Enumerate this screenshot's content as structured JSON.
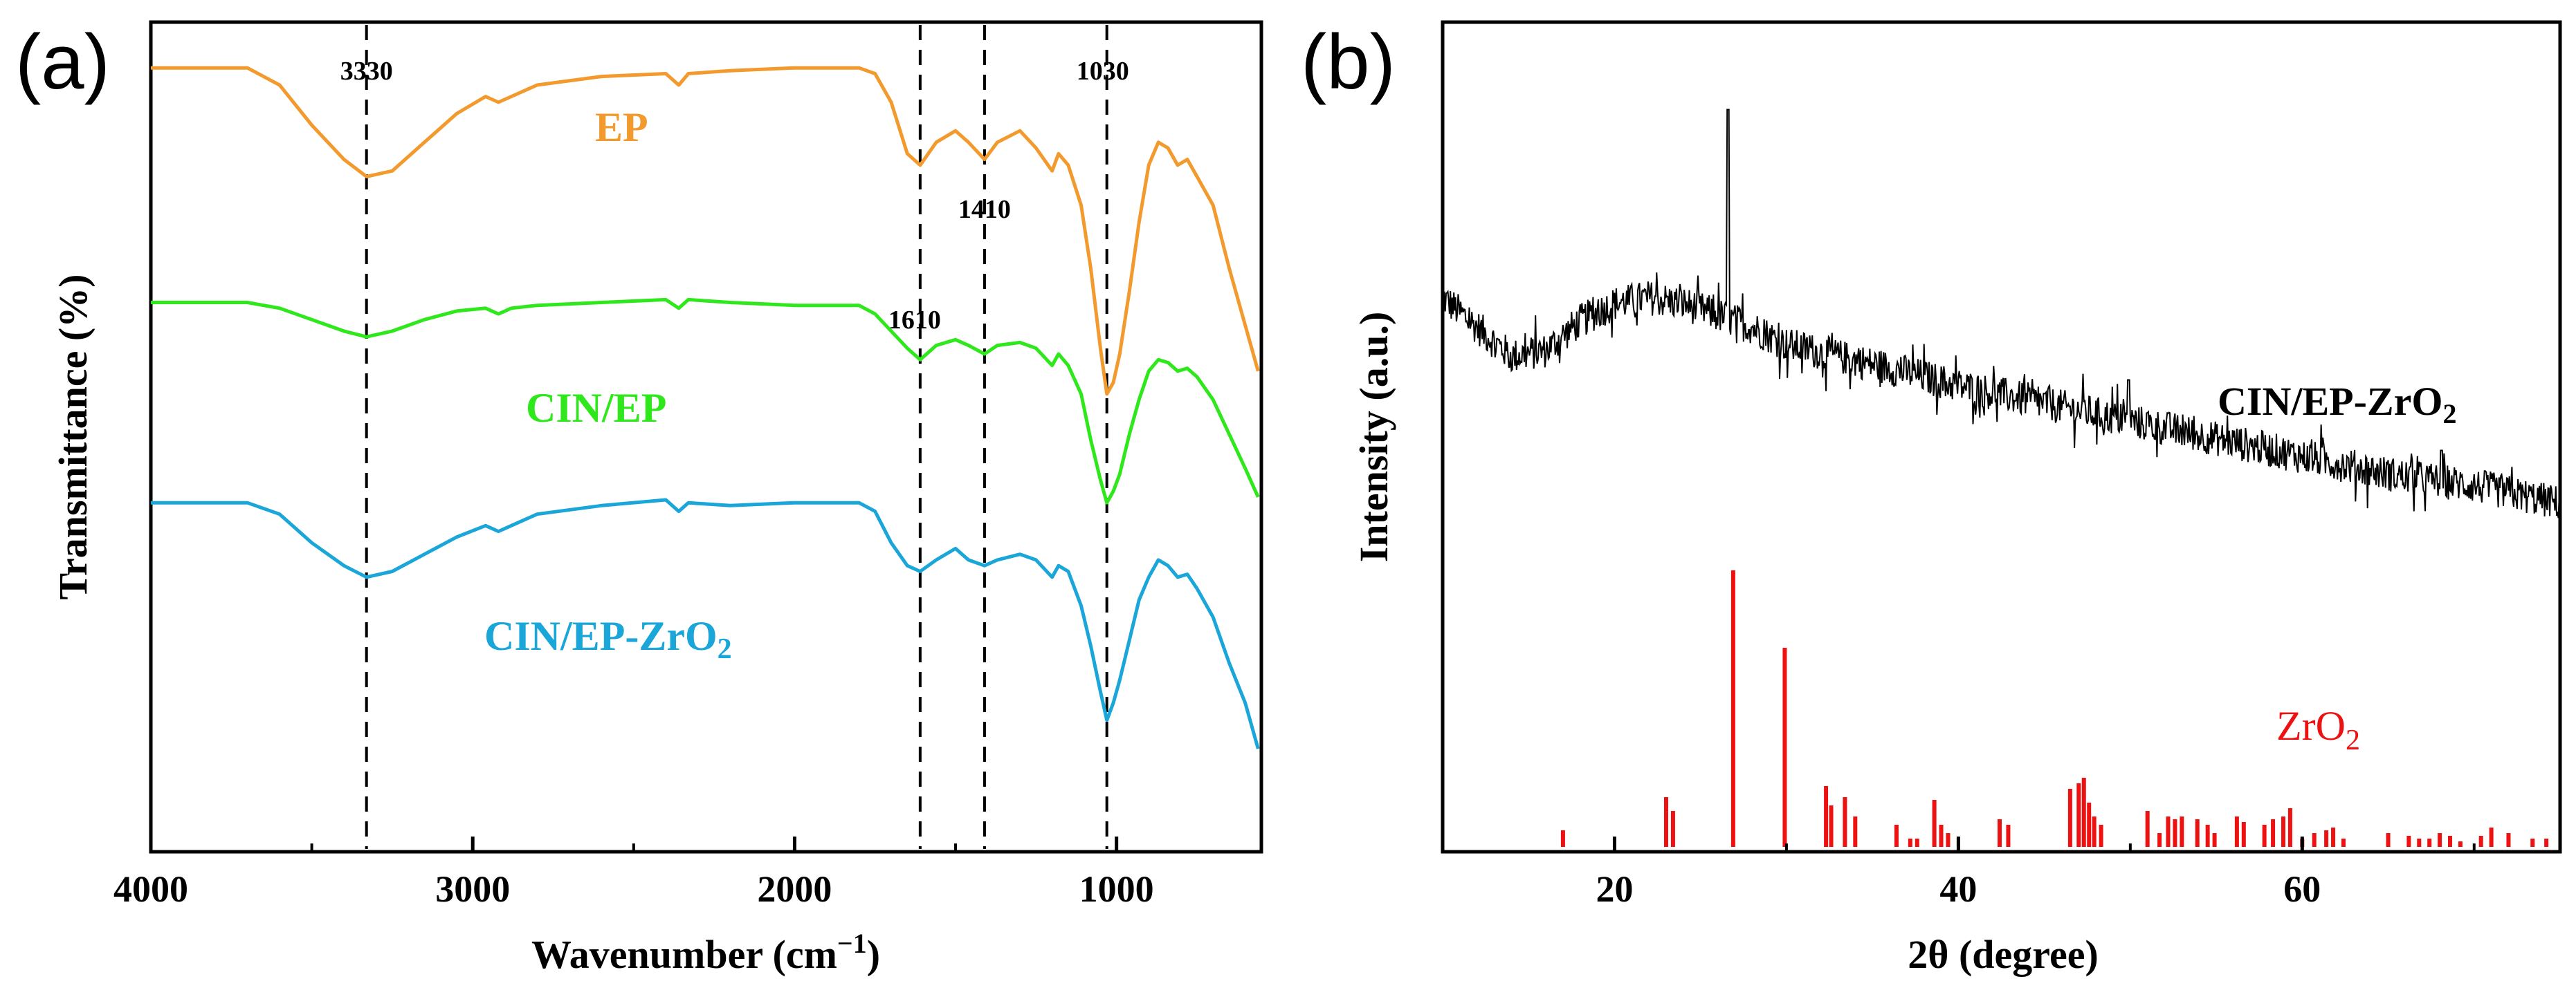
{
  "chart_data": [
    {
      "panel_label": "(a)",
      "type": "line",
      "xlabel": "Wavenumber (cm",
      "xlabel_sup": "−1",
      "xlabel_close": ")",
      "ylabel": "Transmittance (%)",
      "xlim": [
        4000,
        550
      ],
      "xticks": [
        4000,
        3000,
        2000,
        1000
      ],
      "xtick_labels": [
        "4000",
        "3000",
        "2000",
        "1000"
      ],
      "y_ticks_shown": false,
      "reference_lines": [
        {
          "x": 3330,
          "label": "3330"
        },
        {
          "x": 1610,
          "label": "1610"
        },
        {
          "x": 1410,
          "label": "1410"
        },
        {
          "x": 1030,
          "label": "1030"
        }
      ],
      "series": [
        {
          "name": "EP",
          "label": "EP",
          "color": "#f39a2e",
          "x": [
            4000,
            3700,
            3600,
            3500,
            3400,
            3330,
            3250,
            3150,
            3050,
            2960,
            2920,
            2880,
            2800,
            2600,
            2400,
            2360,
            2330,
            2200,
            2000,
            1800,
            1750,
            1700,
            1650,
            1610,
            1560,
            1500,
            1460,
            1410,
            1370,
            1300,
            1250,
            1200,
            1180,
            1150,
            1110,
            1080,
            1050,
            1030,
            1010,
            990,
            960,
            930,
            900,
            870,
            840,
            810,
            780,
            750,
            700,
            650,
            600,
            560
          ],
          "y": [
            97,
            97,
            94,
            87,
            81,
            78,
            79,
            84,
            89,
            92,
            91,
            92,
            94,
            95.5,
            96,
            94,
            96,
            96.5,
            97,
            97,
            96,
            91,
            82,
            80,
            84,
            86,
            84,
            81,
            84,
            86,
            83,
            79,
            82,
            80,
            73,
            62,
            48,
            40,
            42,
            47,
            58,
            70,
            80,
            84,
            83,
            80,
            81,
            78,
            73,
            62,
            52,
            44
          ]
        },
        {
          "name": "CIN/EP",
          "label": "CIN/EP",
          "color": "#2fe81b",
          "x": [
            4000,
            3700,
            3600,
            3500,
            3400,
            3330,
            3250,
            3150,
            3050,
            2960,
            2920,
            2880,
            2800,
            2600,
            2400,
            2360,
            2330,
            2200,
            2000,
            1800,
            1750,
            1700,
            1650,
            1610,
            1560,
            1500,
            1460,
            1410,
            1370,
            1300,
            1250,
            1200,
            1180,
            1150,
            1110,
            1080,
            1050,
            1030,
            1010,
            990,
            960,
            930,
            900,
            870,
            840,
            810,
            780,
            750,
            700,
            650,
            600,
            560
          ],
          "y": [
            56,
            56,
            55,
            53,
            51,
            50,
            51,
            53,
            54.5,
            55,
            54,
            55,
            55.5,
            56,
            56.5,
            55,
            56.5,
            56,
            55.5,
            55.5,
            54,
            51,
            48,
            46,
            48.5,
            49.5,
            48.5,
            47,
            48.5,
            49,
            48,
            45,
            47,
            45,
            40,
            32,
            25,
            21,
            23,
            26,
            33,
            39,
            44,
            46,
            45.5,
            44,
            44.5,
            43,
            39,
            33,
            27,
            22
          ]
        },
        {
          "name": "CIN/EP-ZrO2",
          "label_main": "CIN/EP-ZrO",
          "label_sub": "2",
          "color": "#1aa6d9",
          "x": [
            4000,
            3700,
            3600,
            3500,
            3400,
            3330,
            3250,
            3150,
            3050,
            2960,
            2920,
            2880,
            2800,
            2600,
            2400,
            2360,
            2330,
            2200,
            2000,
            1800,
            1750,
            1700,
            1650,
            1610,
            1560,
            1500,
            1460,
            1410,
            1370,
            1300,
            1250,
            1200,
            1180,
            1150,
            1110,
            1080,
            1050,
            1030,
            1010,
            990,
            960,
            930,
            900,
            870,
            840,
            810,
            780,
            750,
            700,
            650,
            600,
            560
          ],
          "y": [
            21,
            21,
            19,
            14,
            10,
            8,
            9,
            12,
            15,
            17,
            16,
            17,
            19,
            20.5,
            21.5,
            19.5,
            21,
            20.5,
            21,
            21,
            19.5,
            14,
            10,
            9,
            11,
            13,
            11,
            10,
            11,
            12,
            11,
            8,
            10,
            9,
            3,
            -4,
            -12,
            -17,
            -14,
            -10,
            -3,
            4,
            8,
            11,
            10,
            8,
            8.5,
            6,
            1,
            -7,
            -14,
            -22
          ]
        }
      ],
      "x_minor_ticks": [
        3500,
        2500,
        1500
      ]
    },
    {
      "panel_label": "(b)",
      "type": "line+stick",
      "xlabel": "2θ (degree)",
      "ylabel": "Intensity (a.u.)",
      "xlim": [
        10,
        75
      ],
      "xticks": [
        20,
        40,
        60
      ],
      "xtick_labels": [
        "20",
        "40",
        "60"
      ],
      "x_minor_ticks": [
        10,
        30,
        50,
        70
      ],
      "y_ticks_shown": false,
      "ylim": [
        0,
        100
      ],
      "series": [
        {
          "name": "CIN/EP-ZrO2",
          "label_main": "CIN/EP-ZrO",
          "label_sub": "2",
          "color": "#000000",
          "trend_x": [
            10,
            12,
            14,
            16,
            18,
            20,
            22,
            24,
            26,
            28,
            30,
            33,
            36,
            40,
            45,
            50,
            55,
            60,
            65,
            70,
            75
          ],
          "trend_y": [
            67,
            62,
            57,
            58,
            63,
            66,
            67,
            66,
            64,
            62,
            59,
            57,
            55,
            52,
            49,
            46,
            43,
            40,
            37,
            35,
            32
          ],
          "noise": 3,
          "peaks": [
            {
              "x": 26.6,
              "y": 99
            },
            {
              "x": 49.9,
              "y": 53
            },
            {
              "x": 68.1,
              "y": 41
            }
          ]
        },
        {
          "name": "ZrO2",
          "label_main": "ZrO",
          "label_sub": "2",
          "color": "#ee1111",
          "stick_x": [
            17.0,
            23.0,
            23.4,
            26.9,
            29.9,
            32.3,
            32.6,
            33.4,
            34.0,
            36.4,
            37.2,
            37.6,
            38.6,
            39.0,
            39.4,
            42.4,
            42.9,
            46.5,
            47.0,
            47.3,
            47.6,
            47.9,
            48.3,
            51.0,
            51.7,
            52.2,
            52.6,
            53.0,
            53.9,
            54.5,
            54.9,
            56.2,
            56.6,
            57.8,
            58.3,
            58.9,
            59.3,
            60.0,
            60.7,
            61.4,
            61.8,
            62.4,
            65.0,
            66.2,
            66.8,
            67.4,
            68.0,
            68.6,
            69.2,
            70.4,
            71.0,
            72.0,
            73.4,
            74.2
          ],
          "stick_y": [
            6,
            18,
            13,
            100,
            72,
            22,
            15,
            18,
            11,
            8,
            3,
            3,
            17,
            8,
            5,
            10,
            8,
            21,
            23,
            25,
            16,
            11,
            8,
            13,
            5,
            11,
            10,
            11,
            10,
            8,
            5,
            11,
            9,
            8,
            10,
            11,
            14,
            3,
            5,
            6,
            7,
            3,
            5,
            4,
            3,
            3,
            5,
            4,
            2,
            4,
            7,
            5,
            3,
            3
          ]
        }
      ]
    }
  ]
}
